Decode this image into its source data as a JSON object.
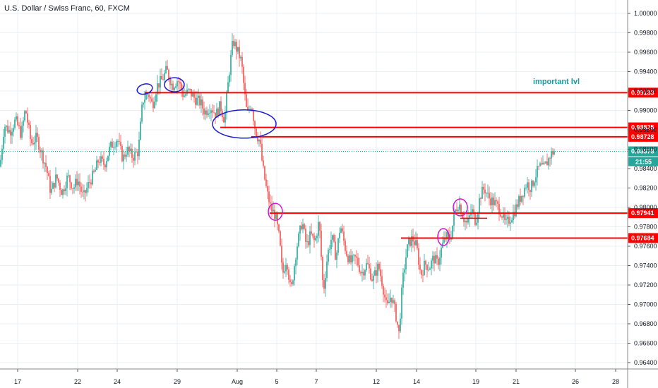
{
  "header": {
    "title": "U.S. Dollar / Swiss Franc, 60, FXCM"
  },
  "colors": {
    "up": "#26a69a",
    "down": "#ef5350",
    "level_line": "#ff0000",
    "current_price": "#26a69a",
    "blue_annotation": "#1b1bd6",
    "magenta_annotation": "#c81cc8",
    "annotation_text": "#1e9ba0",
    "grid": "#eceff2"
  },
  "chart_data": {
    "type": "candlestick",
    "title": "U.S. Dollar / Swiss Franc, 60, FXCM",
    "y_ticks": [
      "1.00000",
      "0.99800",
      "0.99600",
      "0.99400",
      "0.99200",
      "0.99000",
      "0.98800",
      "0.98600",
      "0.98400",
      "0.98200",
      "0.98000",
      "0.97800",
      "0.97600",
      "0.97400",
      "0.97200",
      "0.97000",
      "0.96800",
      "0.96600",
      "0.96400"
    ],
    "x_ticks": [
      "17",
      "22",
      "24",
      "29",
      "Aug",
      "5",
      "7",
      "12",
      "14",
      "19",
      "21",
      "26",
      "28"
    ],
    "ylim": [
      0.9635,
      1.0007
    ],
    "grid": true,
    "price_path": [
      [
        0,
        0.9842
      ],
      [
        6,
        0.9885
      ],
      [
        14,
        0.9878
      ],
      [
        22,
        0.989
      ],
      [
        30,
        0.9875
      ],
      [
        36,
        0.9902
      ],
      [
        44,
        0.9866
      ],
      [
        52,
        0.9872
      ],
      [
        58,
        0.9858
      ],
      [
        66,
        0.984
      ],
      [
        72,
        0.9815
      ],
      [
        80,
        0.9832
      ],
      [
        88,
        0.9815
      ],
      [
        96,
        0.9832
      ],
      [
        104,
        0.982
      ],
      [
        110,
        0.9829
      ],
      [
        118,
        0.981
      ],
      [
        126,
        0.9825
      ],
      [
        134,
        0.9836
      ],
      [
        140,
        0.985
      ],
      [
        148,
        0.9844
      ],
      [
        156,
        0.9862
      ],
      [
        166,
        0.9871
      ],
      [
        174,
        0.985
      ],
      [
        180,
        0.986
      ],
      [
        188,
        0.9852
      ],
      [
        196,
        0.9858
      ],
      [
        202,
        0.991
      ],
      [
        210,
        0.9918
      ],
      [
        216,
        0.9905
      ],
      [
        222,
        0.9925
      ],
      [
        230,
        0.9932
      ],
      [
        236,
        0.9942
      ],
      [
        244,
        0.9925
      ],
      [
        252,
        0.9932
      ],
      [
        260,
        0.9915
      ],
      [
        268,
        0.992
      ],
      [
        276,
        0.9912
      ],
      [
        284,
        0.9908
      ],
      [
        290,
        0.9898
      ],
      [
        298,
        0.9904
      ],
      [
        306,
        0.9896
      ],
      [
        312,
        0.9905
      ],
      [
        318,
        0.989
      ],
      [
        322,
        0.992
      ],
      [
        326,
        0.9948
      ],
      [
        330,
        0.9972
      ],
      [
        336,
        0.9962
      ],
      [
        342,
        0.995
      ],
      [
        346,
        0.992
      ],
      [
        350,
        0.9895
      ],
      [
        356,
        0.9908
      ],
      [
        362,
        0.9878
      ],
      [
        368,
        0.9868
      ],
      [
        372,
        0.9842
      ],
      [
        378,
        0.9816
      ],
      [
        384,
        0.9798
      ],
      [
        390,
        0.9792
      ],
      [
        396,
        0.9766
      ],
      [
        400,
        0.973
      ],
      [
        406,
        0.9748
      ],
      [
        412,
        0.9712
      ],
      [
        420,
        0.9758
      ],
      [
        428,
        0.9786
      ],
      [
        434,
        0.976
      ],
      [
        440,
        0.9772
      ],
      [
        446,
        0.9764
      ],
      [
        452,
        0.9786
      ],
      [
        458,
        0.9712
      ],
      [
        464,
        0.9752
      ],
      [
        470,
        0.977
      ],
      [
        476,
        0.9748
      ],
      [
        482,
        0.9782
      ],
      [
        490,
        0.9755
      ],
      [
        496,
        0.9743
      ],
      [
        504,
        0.9748
      ],
      [
        512,
        0.9732
      ],
      [
        520,
        0.9742
      ],
      [
        528,
        0.9725
      ],
      [
        536,
        0.974
      ],
      [
        542,
        0.972
      ],
      [
        548,
        0.9695
      ],
      [
        554,
        0.971
      ],
      [
        560,
        0.9692
      ],
      [
        565,
        0.967
      ],
      [
        570,
        0.9722
      ],
      [
        574,
        0.9745
      ],
      [
        578,
        0.9762
      ],
      [
        584,
        0.9768
      ],
      [
        590,
        0.976
      ],
      [
        596,
        0.973
      ],
      [
        602,
        0.9742
      ],
      [
        608,
        0.9738
      ],
      [
        614,
        0.9748
      ],
      [
        620,
        0.9742
      ],
      [
        626,
        0.976
      ],
      [
        632,
        0.977
      ],
      [
        638,
        0.9768
      ],
      [
        644,
        0.9795
      ],
      [
        650,
        0.9805
      ],
      [
        656,
        0.979
      ],
      [
        662,
        0.9782
      ],
      [
        668,
        0.9798
      ],
      [
        674,
        0.9785
      ],
      [
        680,
        0.9812
      ],
      [
        686,
        0.982
      ],
      [
        692,
        0.981
      ],
      [
        698,
        0.9806
      ],
      [
        704,
        0.9802
      ],
      [
        710,
        0.9795
      ],
      [
        716,
        0.9782
      ],
      [
        722,
        0.9788
      ],
      [
        728,
        0.9795
      ],
      [
        734,
        0.9805
      ],
      [
        740,
        0.9815
      ],
      [
        746,
        0.9825
      ],
      [
        752,
        0.982
      ],
      [
        758,
        0.9832
      ],
      [
        764,
        0.9842
      ],
      [
        770,
        0.984
      ],
      [
        776,
        0.9848
      ],
      [
        780,
        0.9855
      ],
      [
        785,
        0.9858
      ]
    ],
    "levels": [
      {
        "label": "0.99183",
        "value": 0.99183,
        "x_start": 205
      },
      {
        "label": "0.98825",
        "value": 0.98825,
        "x_start": 312
      },
      {
        "label": "0.98728",
        "value": 0.98728,
        "x_start": 356
      },
      {
        "label": "0.97941",
        "value": 0.97941,
        "x_start": 382
      },
      {
        "label": "0.97684",
        "value": 0.97684,
        "x_start": 568
      }
    ],
    "current_price": {
      "label": "0.98578",
      "value": 0.98578,
      "countdown": "21:55"
    },
    "annotations": [
      {
        "text": "important lvl",
        "value": 0.9926,
        "align": "right-of-chart-center"
      }
    ]
  }
}
